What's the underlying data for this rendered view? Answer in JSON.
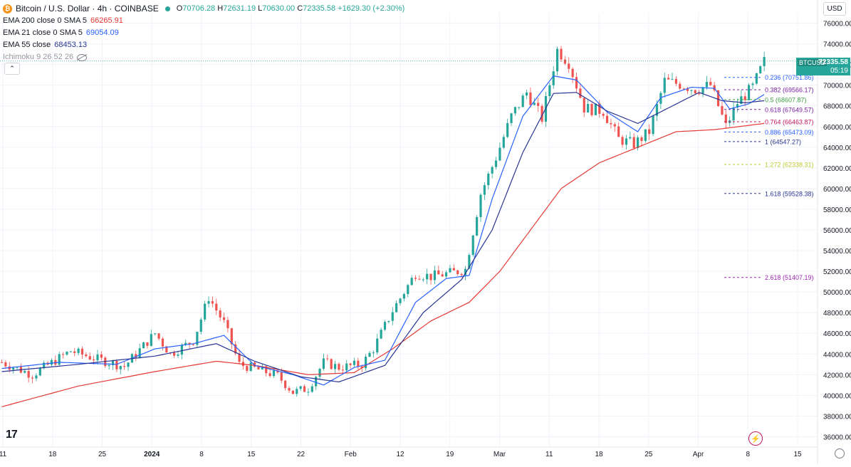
{
  "header": {
    "icon": "bitcoin-icon",
    "title": "Bitcoin / U.S. Dollar · 4h · COINBASE",
    "ohlc": {
      "o_label": "O",
      "o": "70706.28",
      "h_label": "H",
      "h": "72631.19",
      "l_label": "L",
      "l": "70630.00",
      "c_label": "C",
      "c": "72335.58",
      "change": "+1629.30 (+2.30%)"
    },
    "indicators": [
      {
        "name": "EMA 200 close 0 SMA 5",
        "value": "66265.91",
        "color": "#e53935"
      },
      {
        "name": "EMA 21 close 0 SMA 5",
        "value": "69054.09",
        "color": "#2962ff"
      },
      {
        "name": "EMA 55 close",
        "value": "68453.13",
        "color": "#283593"
      }
    ],
    "ichimoku": "Ichimoku 9 26 52 26",
    "collapse_label": "⌃"
  },
  "currency": "USD",
  "price_tag": {
    "symbol": "BTCUSD",
    "price": "72335.58",
    "timer": "05:19"
  },
  "colors": {
    "up": "#26a69a",
    "down": "#ef5350",
    "ema200": "#e53935",
    "ema21": "#2962ff",
    "ema55": "#283593",
    "grid": "#f0f3fa",
    "axis_text": "#131722"
  },
  "chart_data": {
    "type": "candlestick",
    "timeframe": "4h",
    "y_axis": {
      "min": 35000,
      "max": 77000,
      "ticks": [
        36000,
        38000,
        40000,
        42000,
        44000,
        46000,
        48000,
        50000,
        52000,
        54000,
        56000,
        58000,
        60000,
        62000,
        64000,
        66000,
        68000,
        70000,
        72000,
        74000,
        76000
      ]
    },
    "x_axis": {
      "labels": [
        "11",
        "18",
        "25",
        "2024",
        "8",
        "15",
        "22",
        "Feb",
        "12",
        "19",
        "Mar",
        "11",
        "18",
        "25",
        "Apr",
        "8",
        "15"
      ]
    },
    "price_path": [
      [
        0,
        43200
      ],
      [
        8,
        42000
      ],
      [
        18,
        44300
      ],
      [
        25,
        43500
      ],
      [
        32,
        42800
      ],
      [
        40,
        46000
      ],
      [
        44,
        44000
      ],
      [
        50,
        45300
      ],
      [
        54,
        49500
      ],
      [
        58,
        47000
      ],
      [
        62,
        43000
      ],
      [
        66,
        42600
      ],
      [
        72,
        41900
      ],
      [
        76,
        40300
      ],
      [
        80,
        40700
      ],
      [
        84,
        43200
      ],
      [
        88,
        42700
      ],
      [
        94,
        43000
      ],
      [
        97,
        44500
      ],
      [
        102,
        48200
      ],
      [
        108,
        51800
      ],
      [
        112,
        51500
      ],
      [
        118,
        51900
      ],
      [
        121,
        52200
      ],
      [
        125,
        59500
      ],
      [
        129,
        63000
      ],
      [
        133,
        67000
      ],
      [
        137,
        69300
      ],
      [
        141,
        66800
      ],
      [
        145,
        73400
      ],
      [
        148,
        72200
      ],
      [
        152,
        67800
      ],
      [
        157,
        67500
      ],
      [
        161,
        64800
      ],
      [
        165,
        64300
      ],
      [
        169,
        65500
      ],
      [
        173,
        70400
      ],
      [
        177,
        70100
      ],
      [
        181,
        69600
      ],
      [
        185,
        70000
      ],
      [
        189,
        66000
      ],
      [
        192,
        68300
      ],
      [
        196,
        69800
      ],
      [
        199,
        72300
      ]
    ],
    "series": [
      {
        "name": "EMA 200 close 0 SMA 5",
        "points": [
          [
            0,
            38900
          ],
          [
            20,
            40900
          ],
          [
            40,
            42300
          ],
          [
            56,
            43300
          ],
          [
            66,
            42900
          ],
          [
            80,
            42000
          ],
          [
            92,
            42200
          ],
          [
            102,
            44500
          ],
          [
            112,
            47200
          ],
          [
            122,
            49000
          ],
          [
            130,
            52000
          ],
          [
            138,
            56000
          ],
          [
            146,
            60000
          ],
          [
            156,
            62500
          ],
          [
            166,
            64000
          ],
          [
            176,
            65500
          ],
          [
            186,
            65700
          ],
          [
            199,
            66300
          ]
        ]
      },
      {
        "name": "EMA 21 close 0 SMA 5",
        "points": [
          [
            0,
            42600
          ],
          [
            15,
            43200
          ],
          [
            30,
            43000
          ],
          [
            40,
            44500
          ],
          [
            50,
            45000
          ],
          [
            58,
            45800
          ],
          [
            66,
            42900
          ],
          [
            76,
            42000
          ],
          [
            84,
            41000
          ],
          [
            92,
            42700
          ],
          [
            100,
            43400
          ],
          [
            108,
            49000
          ],
          [
            116,
            51300
          ],
          [
            122,
            51600
          ],
          [
            128,
            59000
          ],
          [
            136,
            67000
          ],
          [
            144,
            70900
          ],
          [
            150,
            70500
          ],
          [
            158,
            67400
          ],
          [
            166,
            65500
          ],
          [
            172,
            68800
          ],
          [
            180,
            69800
          ],
          [
            186,
            69700
          ],
          [
            190,
            67700
          ],
          [
            195,
            68200
          ],
          [
            199,
            69100
          ]
        ]
      },
      {
        "name": "EMA 55 close",
        "points": [
          [
            0,
            42300
          ],
          [
            20,
            43000
          ],
          [
            40,
            43800
          ],
          [
            56,
            45000
          ],
          [
            66,
            43300
          ],
          [
            78,
            41800
          ],
          [
            88,
            41300
          ],
          [
            100,
            42900
          ],
          [
            110,
            48000
          ],
          [
            120,
            51200
          ],
          [
            128,
            56000
          ],
          [
            136,
            63500
          ],
          [
            144,
            69200
          ],
          [
            150,
            69300
          ],
          [
            158,
            67500
          ],
          [
            166,
            66300
          ],
          [
            174,
            67800
          ],
          [
            182,
            69300
          ],
          [
            188,
            68500
          ],
          [
            194,
            68300
          ],
          [
            199,
            68500
          ]
        ]
      }
    ],
    "fibonacci": [
      {
        "ratio": "0.236",
        "value": "70751.86",
        "color": "#2962ff"
      },
      {
        "ratio": "0.382",
        "value": "69566.17",
        "color": "#7b1fa2"
      },
      {
        "ratio": "0.5",
        "value": "68607.87",
        "color": "#43a047"
      },
      {
        "ratio": "0.618",
        "value": "67649.57",
        "color": "#7b1fa2"
      },
      {
        "ratio": "0.764",
        "value": "66463.87",
        "color": "#c2185b"
      },
      {
        "ratio": "0.886",
        "value": "65473.09",
        "color": "#2962ff"
      },
      {
        "ratio": "1",
        "value": "64547.27",
        "color": "#283593"
      },
      {
        "ratio": "1.272",
        "value": "62338.31",
        "color": "#c0ca33"
      },
      {
        "ratio": "1.618",
        "value": "59528.38",
        "color": "#283593"
      },
      {
        "ratio": "2.618",
        "value": "51407.19",
        "color": "#9c27b0"
      }
    ],
    "last_price": 72335.58
  },
  "footer": {
    "logo": "17",
    "bolt_icon": "bolt-icon",
    "settings_icon": "settings-icon"
  }
}
